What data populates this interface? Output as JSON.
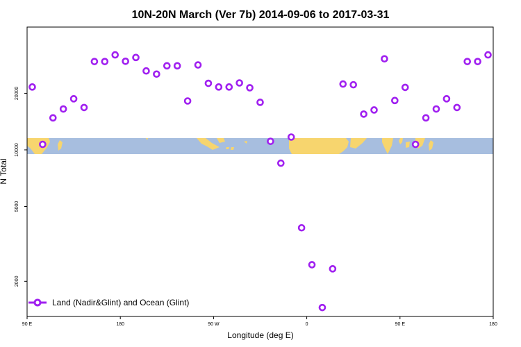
{
  "chart_data": {
    "type": "scatter",
    "title": "10N-20N March (Ver 7b)   2014-09-06 to 2017-03-31",
    "xlabel": "Longitude (deg E)",
    "ylabel": "N Total",
    "x_axis": {
      "min": 90,
      "max": 450,
      "ticks": [
        {
          "value": 90,
          "label": "90 E"
        },
        {
          "value": 180,
          "label": "180"
        },
        {
          "value": 270,
          "label": "90 W"
        },
        {
          "value": 360,
          "label": "0"
        },
        {
          "value": 450,
          "label": "90 E"
        },
        {
          "value": 540,
          "label": "180"
        }
      ],
      "range": [
        90,
        540
      ]
    },
    "y_axis": {
      "scale": "log",
      "range": [
        1300,
        45000
      ],
      "ticks": [
        {
          "value": 2000,
          "label": "2000"
        },
        {
          "value": 5000,
          "label": "5000"
        },
        {
          "value": 10000,
          "label": "10000"
        },
        {
          "value": 20000,
          "label": "20000"
        }
      ]
    },
    "grid": false,
    "legend": {
      "position": "bottom-left"
    },
    "series": [
      {
        "name": "Land (Nadir&Glint) and Ocean (Glint)",
        "color": "#a020f0",
        "marker": "open-circle",
        "points": [
          [
            95,
            21600
          ],
          [
            105,
            10700
          ],
          [
            115,
            14800
          ],
          [
            125,
            16500
          ],
          [
            135,
            18700
          ],
          [
            145,
            16800
          ],
          [
            155,
            29500
          ],
          [
            165,
            29500
          ],
          [
            175,
            32000
          ],
          [
            185,
            29600
          ],
          [
            195,
            31000
          ],
          [
            205,
            26300
          ],
          [
            215,
            25300
          ],
          [
            225,
            28000
          ],
          [
            235,
            28000
          ],
          [
            245,
            18200
          ],
          [
            255,
            28300
          ],
          [
            265,
            22600
          ],
          [
            275,
            21600
          ],
          [
            285,
            21600
          ],
          [
            295,
            22700
          ],
          [
            305,
            21400
          ],
          [
            315,
            17900
          ],
          [
            325,
            11100
          ],
          [
            335,
            8500
          ],
          [
            345,
            11700
          ],
          [
            355,
            3850
          ],
          [
            365,
            2450
          ],
          [
            375,
            1450
          ],
          [
            385,
            2330
          ],
          [
            395,
            22400
          ],
          [
            405,
            22200
          ],
          [
            415,
            15500
          ],
          [
            425,
            16300
          ],
          [
            435,
            30500
          ],
          [
            445,
            18300
          ],
          [
            455,
            21500
          ],
          [
            465,
            10700
          ],
          [
            475,
            14800
          ],
          [
            485,
            16500
          ],
          [
            495,
            18700
          ],
          [
            505,
            16800
          ],
          [
            515,
            29500
          ],
          [
            525,
            29500
          ],
          [
            535,
            32000
          ]
        ]
      }
    ]
  }
}
